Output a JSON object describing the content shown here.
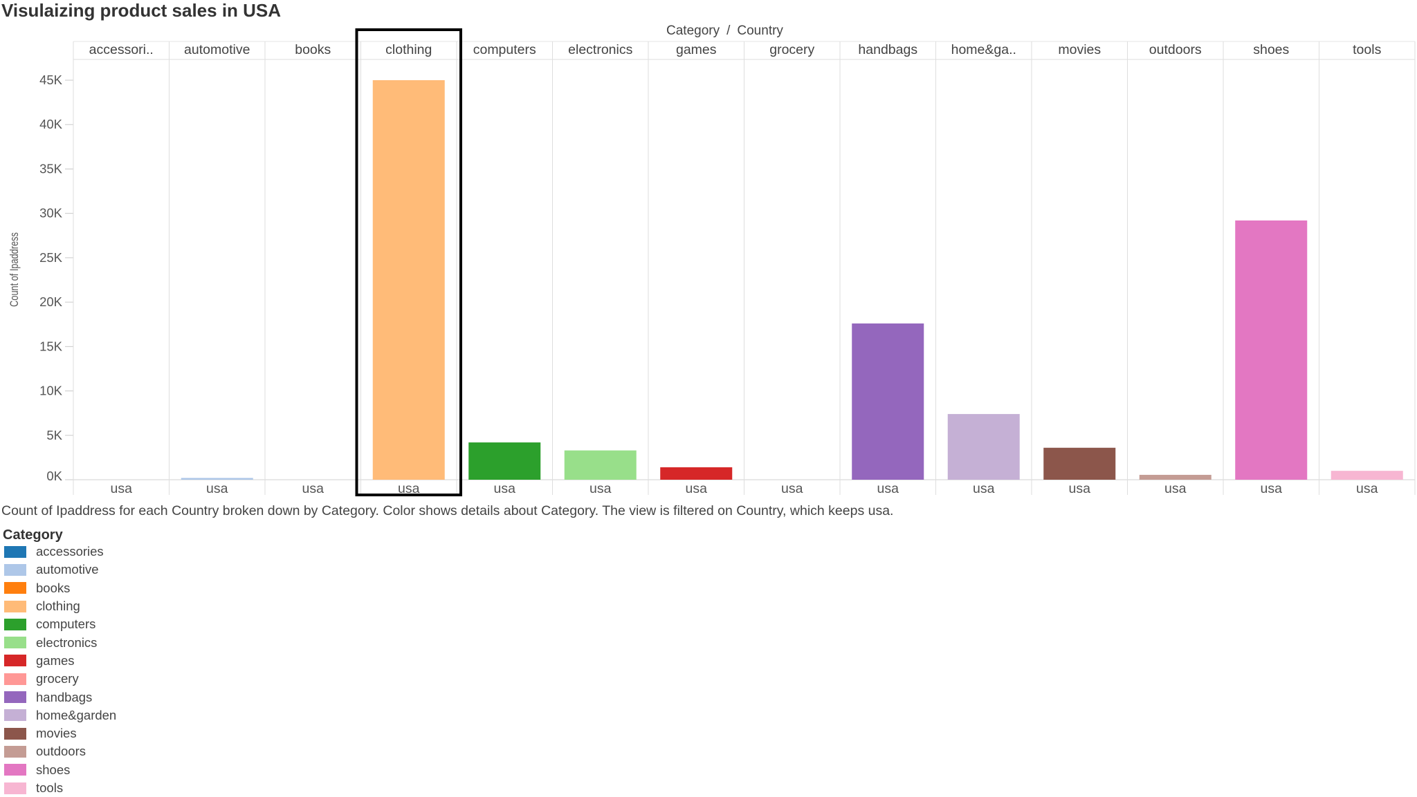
{
  "title": "Visulaizing product sales in USA",
  "header": {
    "category_label": "Category",
    "separator": "/",
    "country_label": "Country"
  },
  "caption": "Count of Ipaddress for each Country broken down by Category.  Color shows details about Category. The view is filtered on Country, which keeps usa.",
  "legend": {
    "title": "Category",
    "items": [
      {
        "label": "accessories",
        "color": "#1f77b4"
      },
      {
        "label": "automotive",
        "color": "#aec7e8"
      },
      {
        "label": "books",
        "color": "#ff7f0e"
      },
      {
        "label": "clothing",
        "color": "#ffbb78"
      },
      {
        "label": "computers",
        "color": "#2ca02c"
      },
      {
        "label": "electronics",
        "color": "#98df8a"
      },
      {
        "label": "games",
        "color": "#d62728"
      },
      {
        "label": "grocery",
        "color": "#ff9896"
      },
      {
        "label": "handbags",
        "color": "#9467bd"
      },
      {
        "label": "home&garden",
        "color": "#c5b0d5"
      },
      {
        "label": "movies",
        "color": "#8c564b"
      },
      {
        "label": "outdoors",
        "color": "#c49c94"
      },
      {
        "label": "shoes",
        "color": "#e377c2"
      },
      {
        "label": "tools",
        "color": "#f7b6d2"
      }
    ]
  },
  "chart_data": {
    "type": "bar",
    "ylabel": "Count of Ipaddress",
    "ylim": [
      0,
      45000
    ],
    "yticks": [
      0,
      5000,
      10000,
      15000,
      20000,
      25000,
      30000,
      35000,
      40000,
      45000
    ],
    "ytick_labels": [
      "0K",
      "5K",
      "10K",
      "15K",
      "20K",
      "25K",
      "30K",
      "35K",
      "40K",
      "45K"
    ],
    "column_headers": [
      "accessori..",
      "automotive",
      "books",
      "clothing",
      "computers",
      "electronics",
      "games",
      "grocery",
      "handbags",
      "home&ga..",
      "movies",
      "outdoors",
      "shoes",
      "tools"
    ],
    "categories": [
      "accessories",
      "automotive",
      "books",
      "clothing",
      "computers",
      "electronics",
      "games",
      "grocery",
      "handbags",
      "home&garden",
      "movies",
      "outdoors",
      "shoes",
      "tools"
    ],
    "x_label": "usa",
    "values": [
      0,
      200,
      0,
      45000,
      4200,
      3300,
      1400,
      0,
      17600,
      7400,
      3600,
      550,
      29200,
      1000
    ],
    "colors": [
      "#1f77b4",
      "#aec7e8",
      "#ff7f0e",
      "#ffbb78",
      "#2ca02c",
      "#98df8a",
      "#d62728",
      "#ff9896",
      "#9467bd",
      "#c5b0d5",
      "#8c564b",
      "#c49c94",
      "#e377c2",
      "#f7b6d2"
    ],
    "highlighted_category": "clothing",
    "grid": true,
    "legend_position": "bottom-left"
  }
}
